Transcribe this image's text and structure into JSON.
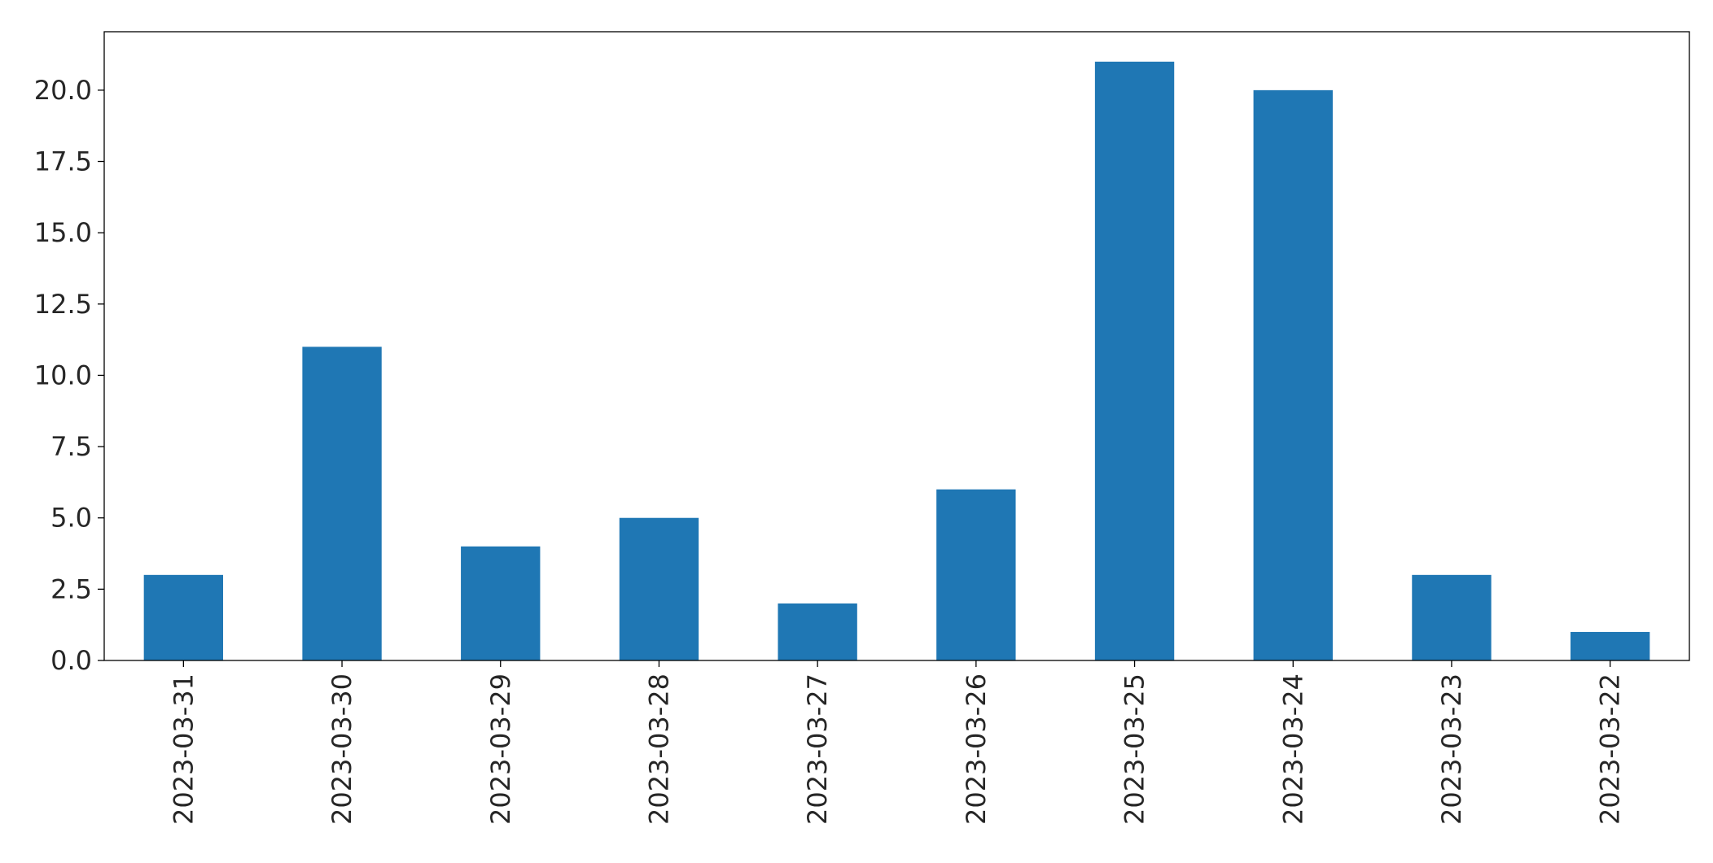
{
  "chart_data": {
    "type": "bar",
    "title": "",
    "xlabel": "",
    "ylabel": "",
    "categories": [
      "2023-03-31",
      "2023-03-30",
      "2023-03-29",
      "2023-03-28",
      "2023-03-27",
      "2023-03-26",
      "2023-03-25",
      "2023-03-24",
      "2023-03-23",
      "2023-03-22"
    ],
    "values": [
      3,
      11,
      4,
      5,
      2,
      6,
      21,
      20,
      3,
      1
    ],
    "ylim": [
      0,
      22.05
    ],
    "yticks": [
      "0.0",
      "2.5",
      "5.0",
      "7.5",
      "10.0",
      "12.5",
      "15.0",
      "17.5",
      "20.0"
    ],
    "grid": false,
    "legend": "none",
    "bar_color": "#1f77b4",
    "xtick_rotation": 90
  }
}
